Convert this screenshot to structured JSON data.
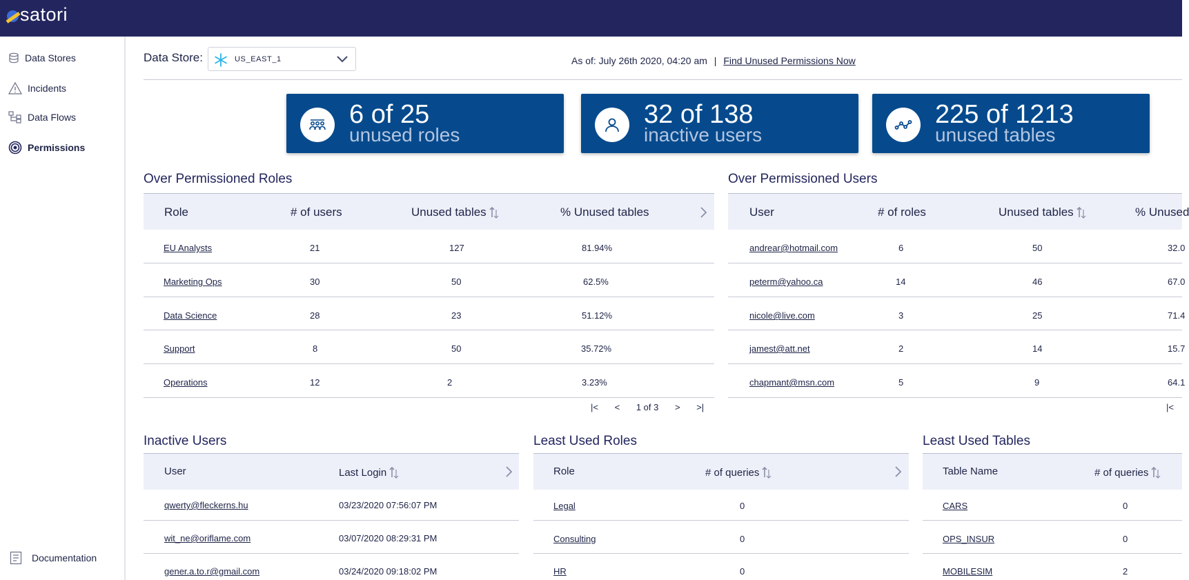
{
  "app": {
    "logo_text": "satori"
  },
  "sidebar": {
    "items": [
      {
        "label": "Data Stores"
      },
      {
        "label": "Incidents"
      },
      {
        "label": "Data Flows"
      },
      {
        "label": "Permissions"
      }
    ],
    "documentation": "Documentation"
  },
  "header": {
    "data_store_label": "Data Store:",
    "data_store_value": "US_EAST_1",
    "as_of": "As of: July 26th 2020, 04:20 am",
    "separator": "|",
    "find_link": "Find Unused Permissions Now"
  },
  "cards": [
    {
      "big": "6 of 25",
      "small": "unused roles",
      "icon": "roles-group-icon"
    },
    {
      "big": "32 of 138",
      "small": "inactive users",
      "icon": "user-icon"
    },
    {
      "big": "225 of 1213",
      "small": "unused tables",
      "icon": "nodes-icon"
    }
  ],
  "over_roles": {
    "title": "Over Permissioned Roles",
    "headers": [
      "Role",
      "# of users",
      "Unused tables",
      "% Unused tables"
    ],
    "rows": [
      [
        "EU Analysts",
        "21",
        "127",
        "81.94%"
      ],
      [
        "Marketing Ops",
        "30",
        "50",
        "62.5%"
      ],
      [
        "Data Science",
        "28",
        "23",
        "51.12%"
      ],
      [
        "Support",
        "8",
        "50",
        "35.72%"
      ],
      [
        "Operations",
        "12",
        "2",
        "3.23%"
      ]
    ],
    "pager": {
      "first": "|<",
      "prev": "<",
      "page": "1 of 3",
      "next": ">",
      "last": ">|"
    }
  },
  "over_users": {
    "title": "Over Permissioned Users",
    "headers": [
      "User",
      "# of roles",
      "Unused tables",
      "% Unused"
    ],
    "rows": [
      [
        "andrear@hotmail.com",
        "6",
        "50",
        "32.0"
      ],
      [
        "peterm@yahoo.ca",
        "14",
        "46",
        "67.0"
      ],
      [
        "nicole@live.com",
        "3",
        "25",
        "71.4"
      ],
      [
        "jamest@att.net",
        "2",
        "14",
        "15.7"
      ],
      [
        "chapmant@msn.com",
        "5",
        "9",
        "64.1"
      ]
    ],
    "pager": {
      "first": "|<"
    }
  },
  "inactive_users": {
    "title": "Inactive Users",
    "headers": [
      "User",
      "Last Login"
    ],
    "rows": [
      [
        "qwerty@fleckerns.hu",
        "03/23/2020 07:56:07 PM"
      ],
      [
        "wit_ne@oriflame.com",
        "03/07/2020 08:29:31 PM"
      ],
      [
        "gener.a.to.r@gmail.com",
        "03/24/2020 09:18:02 PM"
      ]
    ]
  },
  "least_roles": {
    "title": "Least Used Roles",
    "headers": [
      "Role",
      "# of queries"
    ],
    "rows": [
      [
        "Legal",
        "0"
      ],
      [
        "Consulting",
        "0"
      ],
      [
        "HR",
        "0"
      ]
    ]
  },
  "least_tables": {
    "title": "Least Used Tables",
    "headers": [
      "Table Name",
      "# of queries"
    ],
    "rows": [
      [
        "CARS",
        "0"
      ],
      [
        "OPS_INSUR",
        "0"
      ],
      [
        "MOBILESIM",
        "2"
      ]
    ]
  },
  "colors": {
    "topbar": "#23265e",
    "card": "#064a8d",
    "header_row": "#eef0f9"
  }
}
